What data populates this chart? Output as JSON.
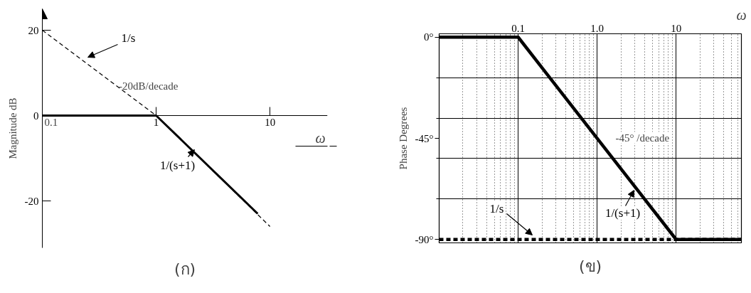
{
  "chart_data": [
    {
      "type": "line",
      "title": "(ก)",
      "xlabel": "ω",
      "ylabel": "Magnitude dB",
      "log": "x",
      "xlim": [
        0.1,
        32
      ],
      "ylim": [
        -31,
        25
      ],
      "xticks": [
        0.1,
        1,
        10
      ],
      "yticks": [
        -20,
        0,
        20
      ],
      "series": [
        {
          "name": "1/s",
          "color": "#000000",
          "line_style": "dashed",
          "x": [
            0.1,
            1,
            10
          ],
          "values": [
            20,
            0,
            -26
          ]
        },
        {
          "name": "1/(s+1)",
          "color": "#000000",
          "line_style": "solid",
          "x": [
            0.1,
            1,
            7.8
          ],
          "values": [
            0,
            0,
            -23
          ]
        }
      ],
      "annotations": [
        {
          "text": "-20dB/decade",
          "x": 0.47,
          "y": 7
        }
      ]
    },
    {
      "type": "line",
      "title": "(ข)",
      "xlabel": "ω",
      "ylabel": "Phase Degrees",
      "log": "x",
      "xlim": [
        0.01,
        67
      ],
      "ylim": [
        -91.5,
        1.5
      ],
      "xticks": [
        0.1,
        {
          "value": 1,
          "label": "1.0"
        },
        10
      ],
      "yticks": [
        {
          "value": 0,
          "label": "0°"
        },
        {
          "value": -18,
          "label": null
        },
        {
          "value": -36,
          "label": null
        },
        {
          "value": -45,
          "label": "-45°"
        },
        {
          "value": -54,
          "label": null
        },
        {
          "value": -72,
          "label": null
        },
        {
          "value": -90,
          "label": "-90°"
        }
      ],
      "grid": true,
      "series": [
        {
          "name": "1/s",
          "color": "#000000",
          "line_style": "dashed",
          "x": [
            0.01,
            67
          ],
          "values": [
            -90,
            -90
          ]
        },
        {
          "name": "1/(s+1)",
          "color": "#000000",
          "line_style": "solid",
          "x": [
            0.01,
            0.1,
            10,
            67
          ],
          "values": [
            0,
            0,
            -90,
            -90
          ]
        }
      ],
      "annotations": [
        "-45° /decade"
      ]
    }
  ]
}
